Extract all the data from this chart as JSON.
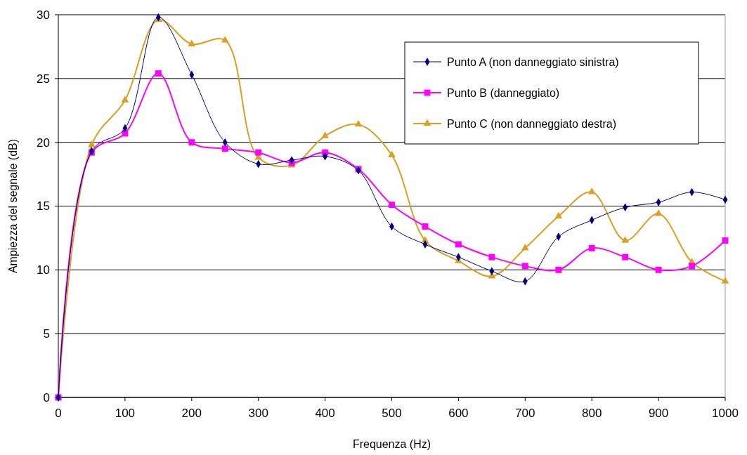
{
  "chart_data": {
    "type": "line",
    "xlabel": "Frequenza (Hz)",
    "ylabel": "Ampiezza del segnale (dB)",
    "x": [
      0,
      50,
      100,
      150,
      200,
      250,
      300,
      350,
      400,
      450,
      500,
      550,
      600,
      650,
      700,
      750,
      800,
      850,
      900,
      950,
      1000
    ],
    "xlim": [
      0,
      1000
    ],
    "xticks": [
      0,
      100,
      200,
      300,
      400,
      500,
      600,
      700,
      800,
      900,
      1000
    ],
    "ylim": [
      0,
      30
    ],
    "yticks": [
      0,
      5,
      10,
      15,
      20,
      25,
      30
    ],
    "grid": "y",
    "legend": "top right",
    "series": [
      {
        "name": "Punto A (non danneggiato sinistra)",
        "color": "#000080",
        "marker": "diamond",
        "values": [
          0,
          19.3,
          21.1,
          29.8,
          25.3,
          20.0,
          18.3,
          18.6,
          18.9,
          17.8,
          13.4,
          12.0,
          11.0,
          9.9,
          9.1,
          12.6,
          13.9,
          14.9,
          15.3,
          16.1,
          15.5
        ]
      },
      {
        "name": "Punto B (danneggiato)",
        "color": "#ff00ff",
        "marker": "square",
        "values": [
          0,
          19.2,
          20.7,
          25.4,
          20.0,
          19.5,
          19.2,
          18.4,
          19.2,
          17.9,
          15.1,
          13.4,
          12.0,
          11.0,
          10.3,
          10.0,
          11.7,
          11.0,
          10.0,
          10.3,
          12.3
        ]
      },
      {
        "name": "Punto C (non danneggiato destra)",
        "color": "#d9a021",
        "marker": "triangle",
        "values": [
          0,
          19.8,
          23.3,
          29.6,
          27.7,
          28.0,
          18.8,
          18.2,
          20.5,
          21.4,
          19.0,
          12.3,
          10.7,
          9.5,
          11.7,
          14.2,
          16.1,
          12.3,
          14.4,
          10.6,
          9.1
        ]
      }
    ]
  }
}
